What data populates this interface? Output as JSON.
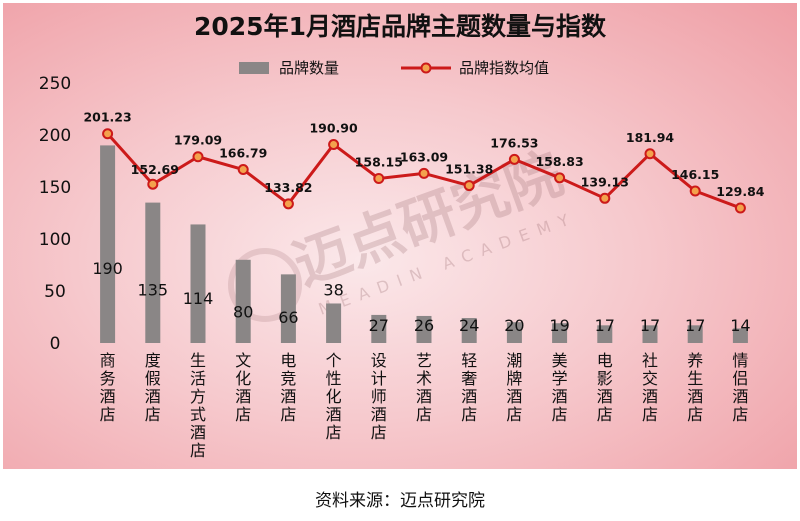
{
  "chart_data": {
    "type": "bar+line",
    "title": "2025年1月酒店品牌主题数量与指数",
    "categories": [
      "商务酒店",
      "度假酒店",
      "生活方式酒店",
      "文化酒店",
      "电竞酒店",
      "个性化酒店",
      "设计师酒店",
      "艺术酒店",
      "轻奢酒店",
      "潮牌酒店",
      "美学酒店",
      "电影酒店",
      "社交酒店",
      "养生酒店",
      "情侣酒店"
    ],
    "series": [
      {
        "name": "品牌数量",
        "type": "bar",
        "color": "#8a8686",
        "values": [
          190,
          135,
          114,
          80,
          66,
          38,
          27,
          26,
          24,
          20,
          19,
          17,
          17,
          17,
          14
        ]
      },
      {
        "name": "品牌指数均值",
        "type": "line",
        "color": "#cc1a1a",
        "values": [
          201.23,
          152.69,
          179.09,
          166.79,
          133.82,
          190.9,
          158.15,
          163.09,
          151.38,
          176.53,
          158.83,
          139.13,
          181.94,
          146.15,
          129.84
        ],
        "labels": [
          "201.23",
          "152.69",
          "179.09",
          "166.79",
          "133.82",
          "190.90",
          "158.15",
          "163.09",
          "151.38",
          "176.53",
          "158.83",
          "139.13",
          "181.94",
          "146.15",
          "129.84"
        ]
      }
    ],
    "yticks": [
      "0",
      "50",
      "100",
      "150",
      "200",
      "250"
    ],
    "ylim": [
      0,
      250
    ],
    "legend_position": "top-center"
  },
  "watermark": {
    "cn": "迈点研究院",
    "en": "MEADIN ACADEMY"
  },
  "source_text": "资料来源：迈点研究院"
}
